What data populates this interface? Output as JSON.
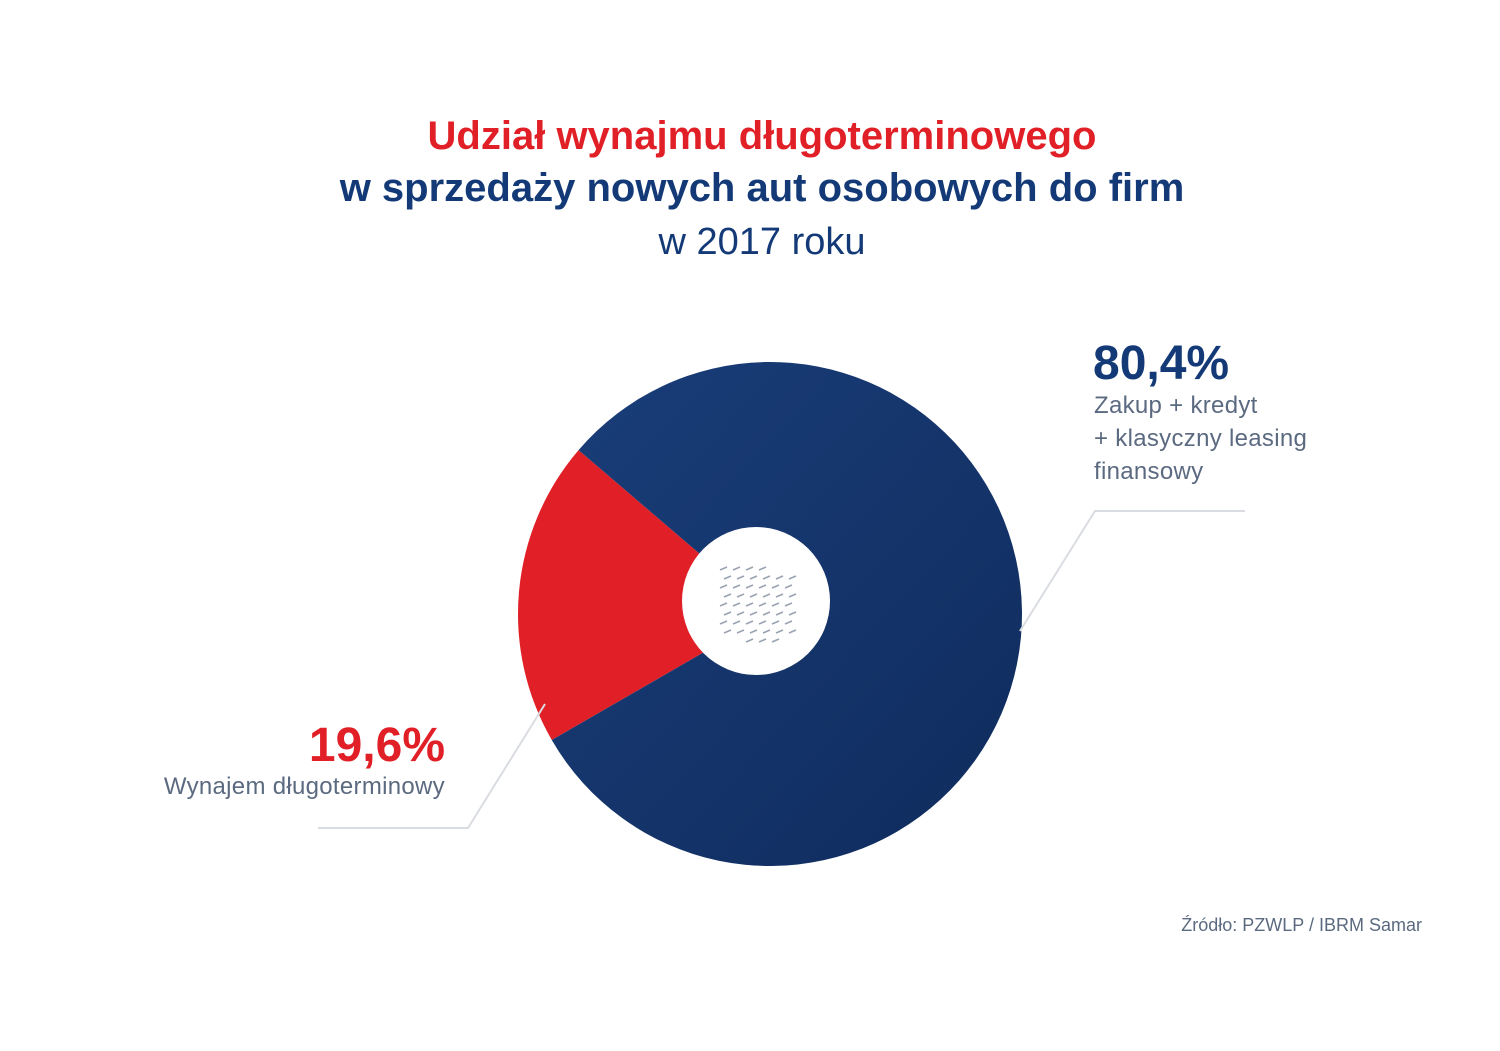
{
  "title": {
    "line1": "Udział wynajmu długoterminowego",
    "line2": "w sprzedaży nowych aut osobowych do firm",
    "subtitle": "w 2017 roku"
  },
  "chart_data": {
    "type": "pie",
    "title": "Udział wynajmu długoterminowego w sprzedaży nowych aut osobowych do firm w 2017 roku",
    "categories": [
      "Wynajem długoterminowy",
      "Zakup + kredyt + klasyczny leasing finansowy"
    ],
    "values": [
      19.6,
      80.4
    ],
    "value_labels": [
      "19,6%",
      "80,4%"
    ],
    "label_lines": [
      [
        "Wynajem długoterminowy"
      ],
      [
        "Zakup + kredyt",
        "+ klasyczny leasing",
        "finansowy"
      ]
    ],
    "colors": [
      "#e11f26",
      "#133a77"
    ]
  },
  "source": "Źródło: PZWLP / IBRM Samar"
}
